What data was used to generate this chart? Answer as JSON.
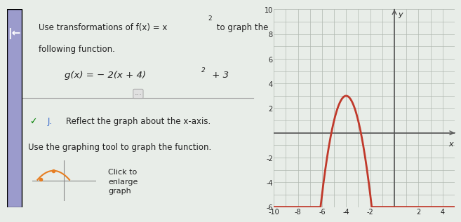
{
  "title_line1": "Use transformations of f(x) = x",
  "title_line2": "following function.",
  "func_label": "g(x) = − 2(x + 4)",
  "func_label2": " + 3",
  "step_label": "J.",
  "step_text": "Reflect the graph about the x-axis.",
  "instruction": "Use the graphing tool to graph the function.",
  "thumbnail_label": "Click to\nenlarge\ngraph",
  "bg_color": "#e8ede8",
  "panel_bg": "#f0f4f0",
  "graph_bg": "#e8ede8",
  "grid_color": "#b0b8b0",
  "axis_color": "#555555",
  "text_color": "#222222",
  "xlim": [
    -10,
    5
  ],
  "ylim": [
    -6,
    10
  ],
  "xticks": [
    -10,
    -8,
    -6,
    -4,
    -2,
    2,
    4
  ],
  "yticks": [
    -6,
    -4,
    -2,
    2,
    4,
    6,
    8,
    10
  ],
  "curve_color": "#c0392b",
  "thumbnail_curve_color": "#e67e22",
  "sidebar_color": "#9b9bcc"
}
